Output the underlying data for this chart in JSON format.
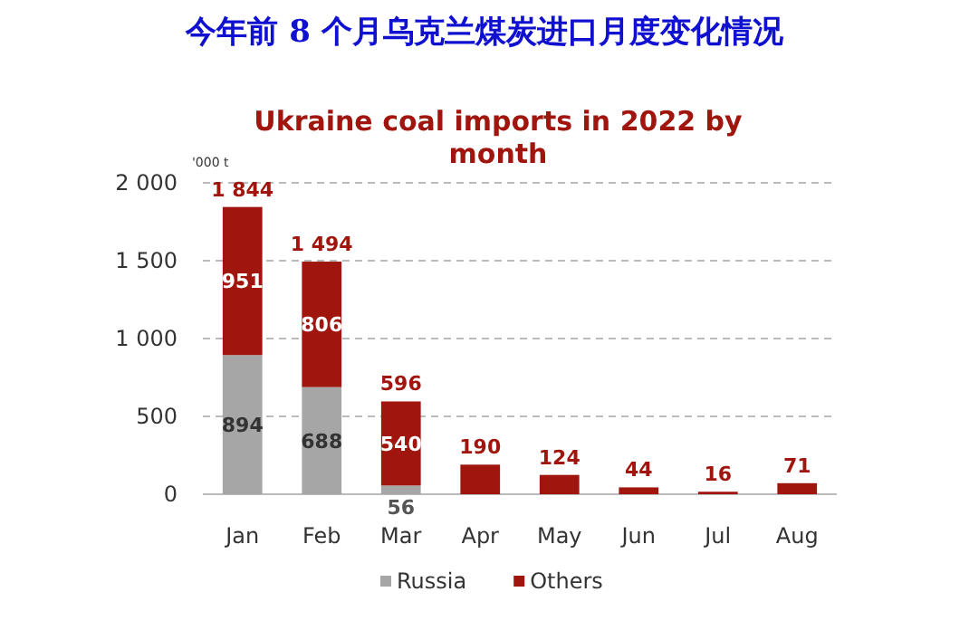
{
  "chart_data": {
    "type": "bar",
    "title": "今年前 8 个月乌克兰煤炭进口月度变化情况",
    "subtitle": "Ukraine coal imports in 2022 by month",
    "ylabel": "'000 t",
    "categories": [
      "Jan",
      "Feb",
      "Mar",
      "Apr",
      "May",
      "Jun",
      "Jul",
      "Aug"
    ],
    "stacked": true,
    "series": [
      {
        "name": "Russia",
        "color": "#a6a6a6",
        "values": [
          894,
          688,
          56,
          null,
          null,
          null,
          null,
          null
        ],
        "value_labels": [
          "894",
          "688",
          "56",
          null,
          null,
          null,
          null,
          null
        ]
      },
      {
        "name": "Others",
        "color": "#a0160e",
        "values": [
          951,
          806,
          540,
          190,
          124,
          44,
          16,
          71
        ],
        "value_labels": [
          "951",
          "806",
          "540",
          null,
          null,
          null,
          null,
          null
        ]
      }
    ],
    "totals": [
      "1 844",
      "1 494",
      "596",
      "190",
      "124",
      "44",
      "16",
      "71"
    ],
    "ylim": [
      0,
      2000
    ],
    "yticks": [
      {
        "value": 0,
        "label": "0"
      },
      {
        "value": 500,
        "label": "500"
      },
      {
        "value": 1000,
        "label": "1 000"
      },
      {
        "value": 1500,
        "label": "1 500"
      },
      {
        "value": 2000,
        "label": "2 000"
      }
    ],
    "grid": "y",
    "legend": "bottom"
  }
}
